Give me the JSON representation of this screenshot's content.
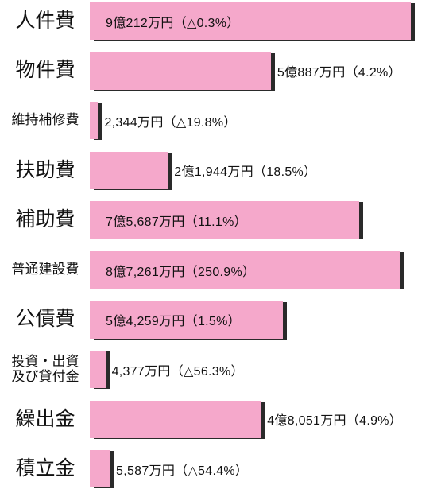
{
  "chart_data": {
    "type": "bar",
    "orientation": "horizontal",
    "categories": [
      "人件費",
      "物件費",
      "維持補修費",
      "扶助費",
      "補助費",
      "普通建設費",
      "公債費",
      "投資・出資\n及び貸付金",
      "繰出金",
      "積立金"
    ],
    "values": [
      90212,
      50887,
      2344,
      21944,
      75687,
      87261,
      54259,
      4377,
      48051,
      5587
    ],
    "value_labels": [
      "9億212万円（△0.3%）",
      "5億887万円（4.2%）",
      "2,344万円（△19.8%）",
      "2億1,944万円（18.5%）",
      "7億5,687万円（11.1%）",
      "8億7,261万円（250.9%）",
      "5億4,259万円（1.5%）",
      "4,377万円（△56.3%）",
      "4億8,051万円（4.9%）",
      "5,587万円（△54.4%）"
    ],
    "color": "#f5a8cb"
  }
}
